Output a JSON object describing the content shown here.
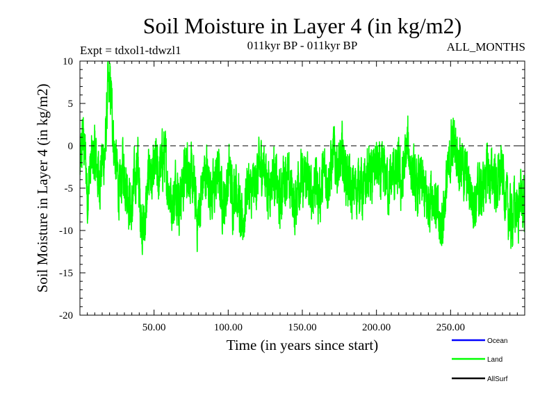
{
  "chart_data": {
    "type": "line",
    "title": "Soil Moisture in Layer 4 (in kg/m2)",
    "subtitle": "011kyr BP - 011kyr BP",
    "expt_label": "Expt = tdxol1-tdwzl1",
    "months_label": "ALL_MONTHS",
    "xlabel": "Time (in years since start)",
    "ylabel": "Soil Moisture in Layer 4 (in kg/m2)",
    "xlim": [
      0,
      300
    ],
    "ylim": [
      -20,
      10
    ],
    "x_ticks": [
      50,
      100,
      150,
      200,
      250
    ],
    "x_tick_labels": [
      "50.00",
      "100.00",
      "150.00",
      "200.00",
      "250.00"
    ],
    "y_ticks": [
      10,
      5,
      0,
      -5,
      -10,
      -15,
      -20
    ],
    "y_tick_labels": [
      "10",
      "5",
      "0",
      "-5",
      "-10",
      "-15",
      "-20"
    ],
    "zero_line": 0,
    "series": [
      {
        "name": "Land",
        "color": "#00ff00",
        "anchors": [
          [
            0,
            -3
          ],
          [
            2,
            1
          ],
          [
            4,
            -2
          ],
          [
            5,
            -6
          ],
          [
            7,
            -3
          ],
          [
            9,
            -1
          ],
          [
            11,
            -2
          ],
          [
            13,
            -4
          ],
          [
            15,
            -2
          ],
          [
            17,
            -1
          ],
          [
            19,
            7
          ],
          [
            21,
            6
          ],
          [
            23,
            0
          ],
          [
            25,
            -3
          ],
          [
            27,
            -6
          ],
          [
            29,
            -2
          ],
          [
            31,
            -4
          ],
          [
            33,
            -6
          ],
          [
            35,
            -8
          ],
          [
            37,
            -4
          ],
          [
            39,
            -2
          ],
          [
            41,
            -8
          ],
          [
            43,
            -10
          ],
          [
            45,
            -7
          ],
          [
            47,
            -2
          ],
          [
            49,
            -5
          ],
          [
            51,
            -2
          ],
          [
            53,
            -4
          ],
          [
            55,
            -2
          ],
          [
            57,
            -1
          ],
          [
            59,
            -4
          ],
          [
            61,
            -6
          ],
          [
            63,
            -7
          ],
          [
            65,
            -4
          ],
          [
            67,
            -7
          ],
          [
            69,
            -5
          ],
          [
            71,
            -3
          ],
          [
            73,
            -2
          ],
          [
            75,
            -4
          ],
          [
            77,
            -5
          ],
          [
            79,
            -9
          ],
          [
            81,
            -7
          ],
          [
            83,
            -4
          ],
          [
            85,
            -3
          ],
          [
            87,
            -4
          ],
          [
            89,
            -6
          ],
          [
            91,
            -5
          ],
          [
            93,
            -3
          ],
          [
            95,
            -5
          ],
          [
            97,
            -7
          ],
          [
            99,
            -5
          ],
          [
            101,
            -3
          ],
          [
            103,
            -6
          ],
          [
            105,
            -4
          ],
          [
            107,
            -6
          ],
          [
            109,
            -10
          ],
          [
            111,
            -8
          ],
          [
            113,
            -4
          ],
          [
            115,
            -6
          ],
          [
            117,
            -5
          ],
          [
            119,
            -4
          ],
          [
            121,
            -3
          ],
          [
            123,
            -2
          ],
          [
            125,
            -3
          ],
          [
            127,
            -5
          ],
          [
            129,
            -4
          ],
          [
            131,
            -3
          ],
          [
            133,
            -5
          ],
          [
            135,
            -7
          ],
          [
            137,
            -4
          ],
          [
            139,
            -3
          ],
          [
            141,
            -5
          ],
          [
            143,
            -5
          ],
          [
            145,
            -8
          ],
          [
            147,
            -4
          ],
          [
            149,
            -4
          ],
          [
            151,
            -5
          ],
          [
            153,
            -3
          ],
          [
            155,
            -6
          ],
          [
            157,
            -5
          ],
          [
            159,
            -4
          ],
          [
            161,
            -6
          ],
          [
            163,
            -5
          ],
          [
            165,
            -3
          ],
          [
            167,
            -4
          ],
          [
            169,
            -3
          ],
          [
            171,
            -1
          ],
          [
            173,
            -2
          ],
          [
            175,
            -3
          ],
          [
            177,
            -1
          ],
          [
            179,
            -3
          ],
          [
            181,
            -4
          ],
          [
            183,
            -6
          ],
          [
            185,
            -5
          ],
          [
            187,
            -5
          ],
          [
            189,
            -4
          ],
          [
            191,
            -6
          ],
          [
            193,
            -4
          ],
          [
            195,
            -3
          ],
          [
            197,
            -4
          ],
          [
            199,
            -2
          ],
          [
            201,
            -3
          ],
          [
            203,
            -4
          ],
          [
            205,
            -3
          ],
          [
            207,
            -4
          ],
          [
            209,
            -5
          ],
          [
            211,
            -3
          ],
          [
            213,
            -4
          ],
          [
            215,
            -3
          ],
          [
            217,
            -5
          ],
          [
            219,
            -2
          ],
          [
            221,
            0
          ],
          [
            223,
            -2
          ],
          [
            225,
            -4
          ],
          [
            227,
            -6
          ],
          [
            229,
            -4
          ],
          [
            231,
            -5
          ],
          [
            233,
            -6
          ],
          [
            235,
            -7
          ],
          [
            237,
            -5
          ],
          [
            239,
            -6
          ],
          [
            241,
            -8
          ],
          [
            243,
            -10
          ],
          [
            245,
            -8
          ],
          [
            247,
            -5
          ],
          [
            249,
            -3
          ],
          [
            251,
            1
          ],
          [
            253,
            0
          ],
          [
            255,
            -1
          ],
          [
            257,
            -2
          ],
          [
            259,
            -3
          ],
          [
            261,
            -4
          ],
          [
            263,
            -5
          ],
          [
            265,
            -6
          ],
          [
            267,
            -7
          ],
          [
            269,
            -5
          ],
          [
            271,
            -6
          ],
          [
            273,
            -4
          ],
          [
            275,
            -3
          ],
          [
            277,
            -4
          ],
          [
            279,
            -3
          ],
          [
            281,
            -5
          ],
          [
            283,
            -4
          ],
          [
            285,
            -3
          ],
          [
            287,
            -6
          ],
          [
            289,
            -8
          ],
          [
            291,
            -9
          ],
          [
            293,
            -7
          ],
          [
            295,
            -8
          ],
          [
            297,
            -6
          ],
          [
            299,
            -7
          ],
          [
            300,
            -8
          ]
        ]
      }
    ],
    "legend": [
      {
        "label": "Ocean",
        "color": "#0000ff"
      },
      {
        "label": "Land",
        "color": "#00ff00"
      },
      {
        "label": "AllSurf",
        "color": "#000000"
      }
    ],
    "legend_position": "bottom-right"
  }
}
